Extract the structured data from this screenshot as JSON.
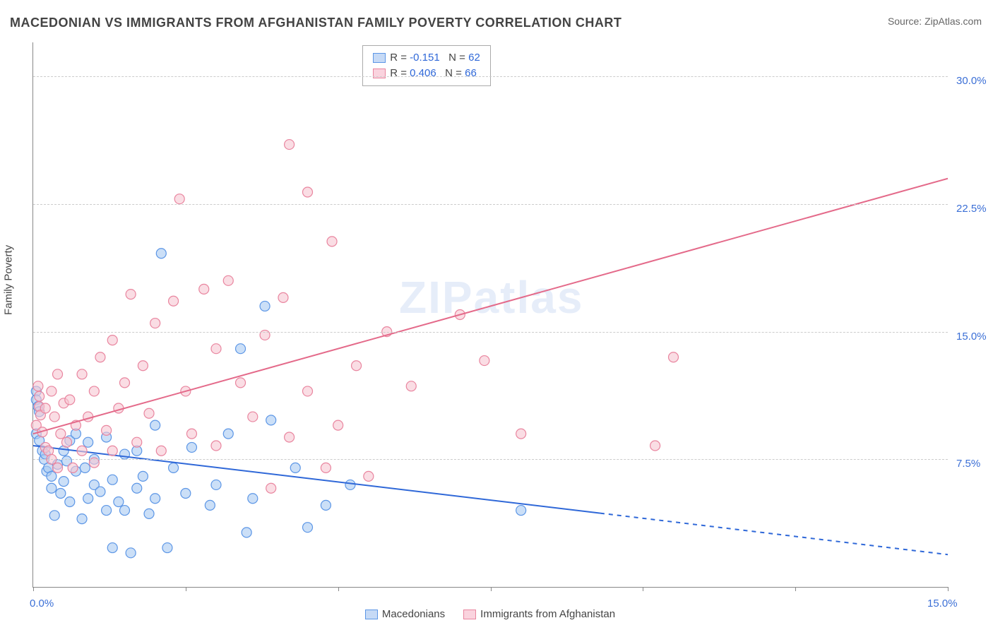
{
  "title": "MACEDONIAN VS IMMIGRANTS FROM AFGHANISTAN FAMILY POVERTY CORRELATION CHART",
  "source_label": "Source: ",
  "source_name": "ZipAtlas.com",
  "y_axis_label": "Family Poverty",
  "watermark": "ZIPatlas",
  "chart": {
    "type": "scatter",
    "xlim": [
      0,
      15
    ],
    "ylim": [
      0,
      32
    ],
    "x_ticks": [
      0,
      2.5,
      5,
      7.5,
      10,
      12.5,
      15
    ],
    "x_tick_labels": {
      "0": "0.0%",
      "15": "15.0%"
    },
    "y_grid": [
      7.5,
      15.0,
      22.5,
      30.0
    ],
    "y_tick_labels": [
      "7.5%",
      "15.0%",
      "22.5%",
      "30.0%"
    ],
    "grid_color": "#cccccc",
    "axis_color": "#888888",
    "tick_label_color": "#3b6fd6",
    "background": "#ffffff",
    "marker_radius": 7,
    "marker_opacity": 0.35,
    "series": [
      {
        "id": "macedonians",
        "label": "Macedonians",
        "color_fill": "#a9c9f2",
        "color_stroke": "#5c96e6",
        "r": -0.151,
        "n": 62,
        "trend": {
          "x1": 0,
          "y1": 8.3,
          "x2": 15,
          "y2": 1.9,
          "solid_until_x": 9.3,
          "color": "#2f68d8",
          "width": 2
        },
        "points": [
          [
            0.05,
            11.5
          ],
          [
            0.05,
            11.0
          ],
          [
            0.08,
            10.6
          ],
          [
            0.1,
            10.3
          ],
          [
            0.05,
            9.0
          ],
          [
            0.1,
            8.6
          ],
          [
            0.15,
            8.0
          ],
          [
            0.18,
            7.5
          ],
          [
            0.2,
            7.8
          ],
          [
            0.22,
            6.8
          ],
          [
            0.25,
            7.0
          ],
          [
            0.3,
            5.8
          ],
          [
            0.3,
            6.5
          ],
          [
            0.35,
            4.2
          ],
          [
            0.4,
            7.2
          ],
          [
            0.45,
            5.5
          ],
          [
            0.5,
            8.0
          ],
          [
            0.5,
            6.2
          ],
          [
            0.55,
            7.4
          ],
          [
            0.6,
            8.6
          ],
          [
            0.6,
            5.0
          ],
          [
            0.7,
            6.8
          ],
          [
            0.7,
            9.0
          ],
          [
            0.8,
            4.0
          ],
          [
            0.85,
            7.0
          ],
          [
            0.9,
            5.2
          ],
          [
            0.9,
            8.5
          ],
          [
            1.0,
            6.0
          ],
          [
            1.0,
            7.5
          ],
          [
            1.1,
            5.6
          ],
          [
            1.2,
            4.5
          ],
          [
            1.2,
            8.8
          ],
          [
            1.3,
            6.3
          ],
          [
            1.3,
            2.3
          ],
          [
            1.4,
            5.0
          ],
          [
            1.5,
            7.8
          ],
          [
            1.5,
            4.5
          ],
          [
            1.6,
            2.0
          ],
          [
            1.7,
            5.8
          ],
          [
            1.7,
            8.0
          ],
          [
            1.8,
            6.5
          ],
          [
            1.9,
            4.3
          ],
          [
            2.0,
            5.2
          ],
          [
            2.0,
            9.5
          ],
          [
            2.1,
            19.6
          ],
          [
            2.2,
            2.3
          ],
          [
            2.3,
            7.0
          ],
          [
            2.5,
            5.5
          ],
          [
            2.6,
            8.2
          ],
          [
            2.9,
            4.8
          ],
          [
            3.0,
            6.0
          ],
          [
            3.2,
            9.0
          ],
          [
            3.4,
            14.0
          ],
          [
            3.5,
            3.2
          ],
          [
            3.6,
            5.2
          ],
          [
            3.8,
            16.5
          ],
          [
            3.9,
            9.8
          ],
          [
            4.3,
            7.0
          ],
          [
            4.5,
            3.5
          ],
          [
            4.8,
            4.8
          ],
          [
            5.2,
            6.0
          ],
          [
            8.0,
            4.5
          ]
        ]
      },
      {
        "id": "afghan",
        "label": "Immigrants from Afghanistan",
        "color_fill": "#f6c6d2",
        "color_stroke": "#e9859f",
        "r": 0.406,
        "n": 66,
        "trend": {
          "x1": 0,
          "y1": 9.0,
          "x2": 15,
          "y2": 24.0,
          "solid_until_x": 15,
          "color": "#e46a8a",
          "width": 2
        },
        "points": [
          [
            0.05,
            9.5
          ],
          [
            0.08,
            11.8
          ],
          [
            0.1,
            11.2
          ],
          [
            0.1,
            10.6
          ],
          [
            0.12,
            10.1
          ],
          [
            0.15,
            9.1
          ],
          [
            0.2,
            8.2
          ],
          [
            0.2,
            10.5
          ],
          [
            0.25,
            8.0
          ],
          [
            0.3,
            11.5
          ],
          [
            0.3,
            7.5
          ],
          [
            0.35,
            10.0
          ],
          [
            0.4,
            12.5
          ],
          [
            0.4,
            7.0
          ],
          [
            0.45,
            9.0
          ],
          [
            0.5,
            10.8
          ],
          [
            0.55,
            8.5
          ],
          [
            0.6,
            11.0
          ],
          [
            0.65,
            7.0
          ],
          [
            0.7,
            9.5
          ],
          [
            0.8,
            8.0
          ],
          [
            0.8,
            12.5
          ],
          [
            0.9,
            10.0
          ],
          [
            1.0,
            11.5
          ],
          [
            1.0,
            7.3
          ],
          [
            1.1,
            13.5
          ],
          [
            1.2,
            9.2
          ],
          [
            1.3,
            8.0
          ],
          [
            1.3,
            14.5
          ],
          [
            1.4,
            10.5
          ],
          [
            1.5,
            12.0
          ],
          [
            1.6,
            17.2
          ],
          [
            1.7,
            8.5
          ],
          [
            1.8,
            13.0
          ],
          [
            1.9,
            10.2
          ],
          [
            2.0,
            15.5
          ],
          [
            2.1,
            8.0
          ],
          [
            2.3,
            16.8
          ],
          [
            2.4,
            22.8
          ],
          [
            2.5,
            11.5
          ],
          [
            2.6,
            9.0
          ],
          [
            2.8,
            17.5
          ],
          [
            3.0,
            14.0
          ],
          [
            3.0,
            8.3
          ],
          [
            3.2,
            18.0
          ],
          [
            3.4,
            12.0
          ],
          [
            3.6,
            10.0
          ],
          [
            3.8,
            14.8
          ],
          [
            3.9,
            5.8
          ],
          [
            4.1,
            17.0
          ],
          [
            4.2,
            26.0
          ],
          [
            4.2,
            8.8
          ],
          [
            4.5,
            11.5
          ],
          [
            4.5,
            23.2
          ],
          [
            4.8,
            7.0
          ],
          [
            4.9,
            20.3
          ],
          [
            5.0,
            9.5
          ],
          [
            5.3,
            13.0
          ],
          [
            5.5,
            6.5
          ],
          [
            5.8,
            15.0
          ],
          [
            6.2,
            11.8
          ],
          [
            7.0,
            16.0
          ],
          [
            7.4,
            13.3
          ],
          [
            8.0,
            9.0
          ],
          [
            10.2,
            8.3
          ],
          [
            10.5,
            13.5
          ]
        ]
      }
    ]
  },
  "legend_stats": {
    "r_label": "R = ",
    "n_label": "N = "
  }
}
